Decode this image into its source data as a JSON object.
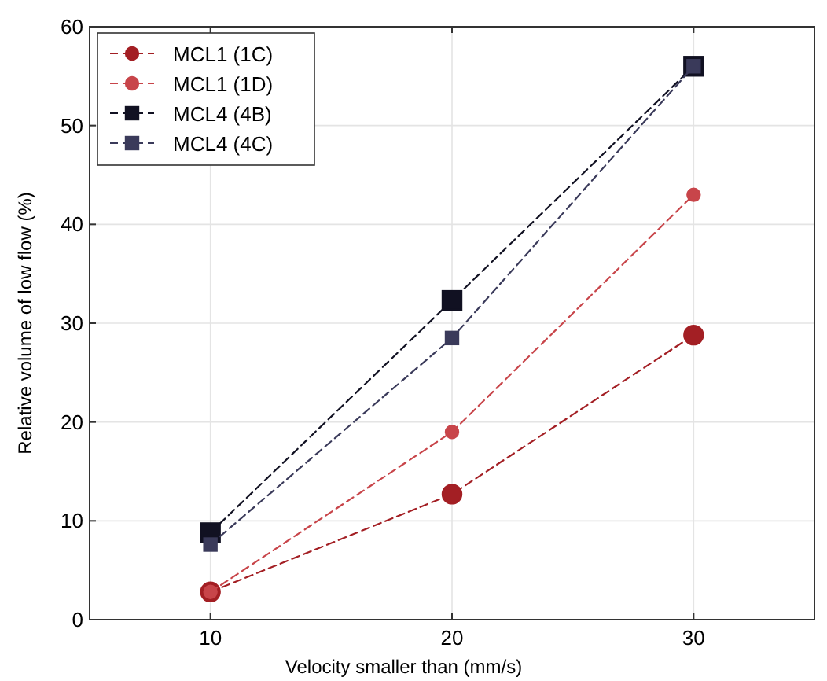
{
  "chart_data": {
    "type": "line",
    "xlabel": "Velocity smaller than (mm/s)",
    "ylabel": "Relative volume of low flow (%)",
    "x": [
      10,
      20,
      30
    ],
    "xlim": [
      5,
      35
    ],
    "xticks": [
      10,
      20,
      30
    ],
    "ylim": [
      0,
      60
    ],
    "yticks": [
      0,
      10,
      20,
      30,
      40,
      50,
      60
    ],
    "grid": true,
    "legend": "top left",
    "line_style": "dashed",
    "series": [
      {
        "name": "MCL1 (1C)",
        "color": "#a31f24",
        "marker": "circle",
        "values": [
          2.8,
          12.7,
          28.8
        ]
      },
      {
        "name": "MCL1 (1D)",
        "color": "#c8454a",
        "marker": "circle",
        "values": [
          2.8,
          19,
          43
        ]
      },
      {
        "name": "MCL4 (4B)",
        "color": "#111122",
        "marker": "square",
        "values": [
          8.8,
          32.3,
          56
        ]
      },
      {
        "name": "MCL4 (4C)",
        "color": "#3a3a5a",
        "marker": "square",
        "values": [
          7.6,
          28.5,
          56
        ]
      }
    ]
  }
}
